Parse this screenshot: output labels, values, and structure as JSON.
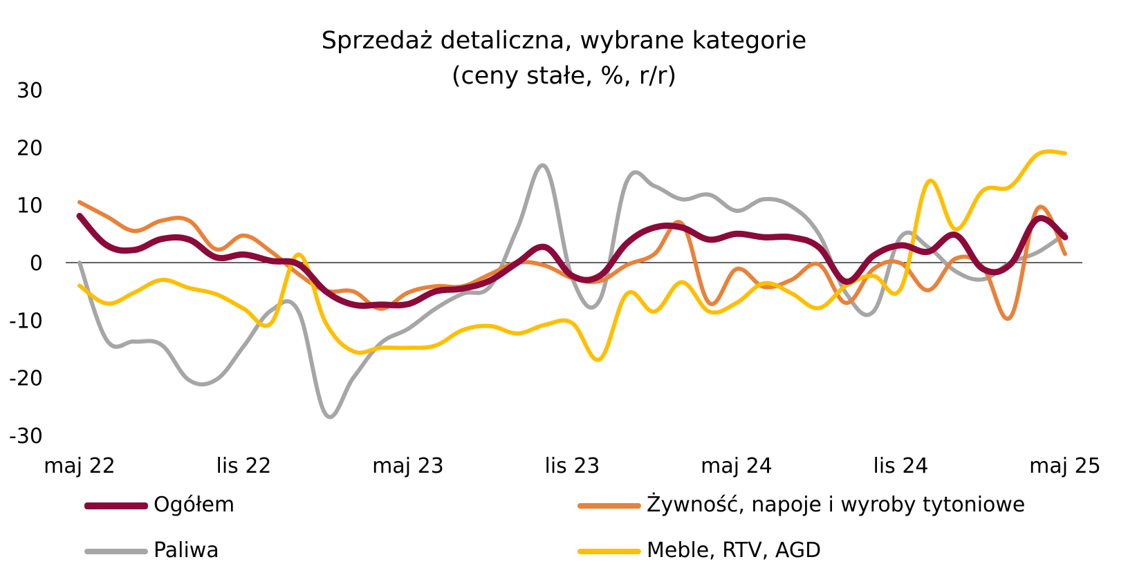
{
  "chart_data": {
    "type": "line",
    "title": "Sprzedaż detaliczna, wybrane kategorie",
    "subtitle": "(ceny stałe, %, r/r)",
    "ylim": [
      -30,
      30
    ],
    "yticks": [
      "30",
      "20",
      "10",
      "0",
      "-10",
      "-20",
      "-30"
    ],
    "xtick_labels": [
      "maj 22",
      "lis 22",
      "maj 23",
      "lis 23",
      "maj 24",
      "lis 24",
      "maj 25"
    ],
    "x": [
      "2022-05",
      "2022-06",
      "2022-07",
      "2022-08",
      "2022-09",
      "2022-10",
      "2022-11",
      "2022-12",
      "2023-01",
      "2023-02",
      "2023-03",
      "2023-04",
      "2023-05",
      "2023-06",
      "2023-07",
      "2023-08",
      "2023-09",
      "2023-10",
      "2023-11",
      "2023-12",
      "2024-01",
      "2024-02",
      "2024-03",
      "2024-04",
      "2024-05",
      "2024-06",
      "2024-07",
      "2024-08",
      "2024-09",
      "2024-10",
      "2024-11",
      "2024-12",
      "2025-01",
      "2025-02",
      "2025-03",
      "2025-04",
      "2025-05"
    ],
    "series": [
      {
        "name": "Ogółem",
        "color": "#8B0A3A",
        "width": 9,
        "values": [
          8.1,
          3.0,
          2.2,
          4.1,
          4.0,
          0.9,
          1.4,
          0.3,
          -0.3,
          -5.0,
          -7.3,
          -7.3,
          -7.2,
          -5.0,
          -4.5,
          -3.1,
          0.0,
          2.7,
          -2.3,
          -2.3,
          3.4,
          6.1,
          6.1,
          4.0,
          5.0,
          4.4,
          4.4,
          2.7,
          -3.3,
          1.2,
          3.0,
          1.9,
          4.8,
          -1.1,
          -0.3,
          7.6,
          4.4
        ]
      },
      {
        "name": "Żywność, napoje i wyroby tytoniowe",
        "color": "#E8823A",
        "width": 6,
        "values": [
          10.5,
          8.0,
          5.5,
          7.3,
          7.3,
          2.3,
          4.7,
          1.9,
          -2.0,
          -4.9,
          -5.0,
          -8.0,
          -5.2,
          -4.1,
          -4.1,
          -2.0,
          0.0,
          -0.5,
          -2.7,
          -3.2,
          -0.4,
          1.5,
          6.8,
          -7.0,
          -1.1,
          -4.2,
          -3.0,
          -0.3,
          -7.0,
          -1.1,
          -0.1,
          -4.8,
          0.7,
          -0.8,
          -9.5,
          9.4,
          1.5
        ]
      },
      {
        "name": "Paliwa",
        "color": "#A6A6A6",
        "width": 6,
        "values": [
          0.0,
          -13.5,
          -13.7,
          -14.3,
          -20.4,
          -20.3,
          -14.5,
          -8.3,
          -8.5,
          -26.4,
          -20.0,
          -14.0,
          -11.5,
          -8.0,
          -5.4,
          -4.1,
          6.0,
          16.7,
          -2.7,
          -6.5,
          14.2,
          13.3,
          11.0,
          11.8,
          9.0,
          11.0,
          9.8,
          5.0,
          -5.3,
          -8.5,
          4.5,
          2.7,
          -1.5,
          -2.9,
          0.0,
          1.8,
          5.0
        ]
      },
      {
        "name": "Meble, RTV, AGD",
        "color": "#FFBF00",
        "width": 6,
        "values": [
          -4.0,
          -7.1,
          -5.2,
          -3.0,
          -4.4,
          -5.5,
          -8.0,
          -10.5,
          1.4,
          -10.5,
          -15.4,
          -14.8,
          -14.8,
          -14.4,
          -11.7,
          -11.0,
          -12.3,
          -10.8,
          -10.5,
          -16.8,
          -5.4,
          -8.5,
          -3.4,
          -8.5,
          -7.0,
          -3.6,
          -5.3,
          -7.9,
          -4.0,
          -2.3,
          -4.5,
          14.0,
          5.8,
          12.5,
          13.2,
          18.8,
          19.0
        ]
      }
    ]
  }
}
